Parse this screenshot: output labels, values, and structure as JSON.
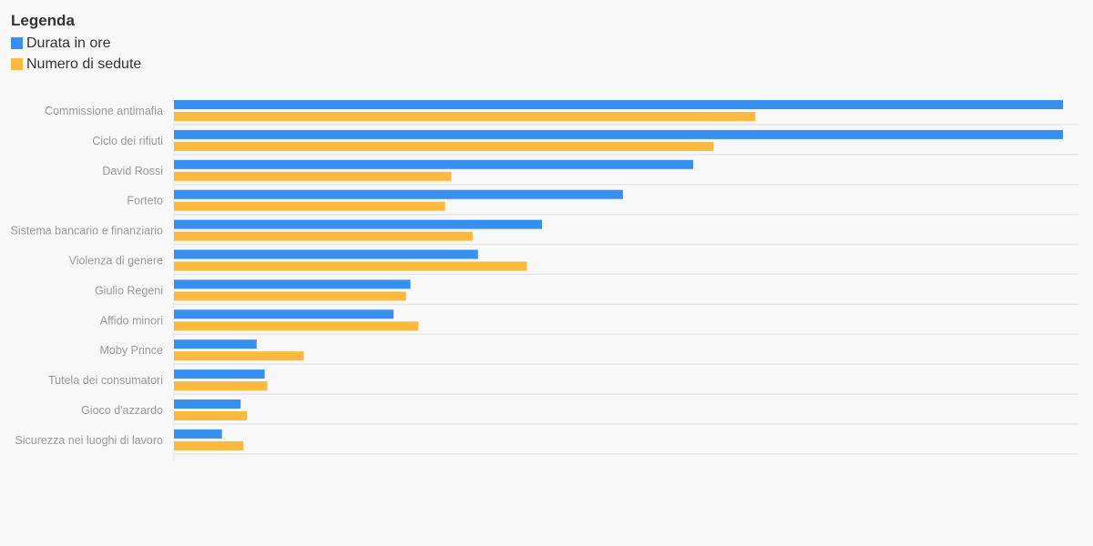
{
  "colors": {
    "background": "#f8f8f8",
    "grid": "#e6e6e6",
    "label": "#9a9a9a"
  },
  "legend": {
    "title": "Legenda",
    "placement": "top-left",
    "items": [
      {
        "label": "Durata in ore",
        "color": "#3590f3"
      },
      {
        "label": "Numero di sedute",
        "color": "#fdb93a"
      }
    ]
  },
  "chart_data": {
    "type": "bar",
    "orientation": "horizontal",
    "categories": [
      "Commissione antimafia",
      "Ciclo dei rifiuti",
      "David Rossi",
      "Forteto",
      "Sistema bancario e finanziario",
      "Violenza di genere",
      "Giulio Regeni",
      "Affido minori",
      "Moby Prince",
      "Tutela dei consumatori",
      "Gioco d'azzardo",
      "Sicurezza nei luoghi di lavoro"
    ],
    "series": [
      {
        "name": "Durata in ore",
        "color": "#3590f3",
        "values": [
          100,
          100,
          58.4,
          50.5,
          41.4,
          34.2,
          26.6,
          24.7,
          9.3,
          10.2,
          7.5,
          5.4
        ]
      },
      {
        "name": "Numero di sedute",
        "color": "#fdb93a",
        "values": [
          65.4,
          60.7,
          31.2,
          30.5,
          33.6,
          39.7,
          26.1,
          27.5,
          14.6,
          10.5,
          8.2,
          7.8
        ]
      }
    ],
    "xlim": [
      0,
      100
    ],
    "grid": true,
    "axis_tick_labels_shown": false
  }
}
